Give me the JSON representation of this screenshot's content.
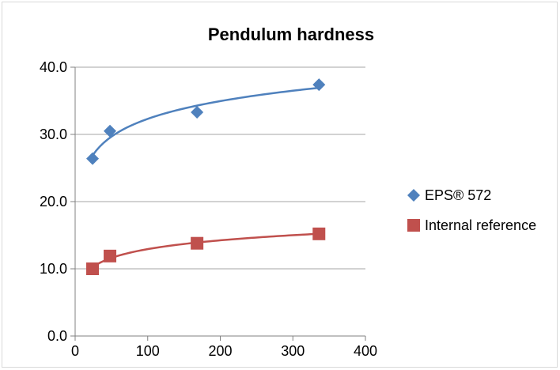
{
  "chart_data": {
    "type": "scatter",
    "title": "Pendulum hardness",
    "xlabel": "",
    "ylabel": "",
    "xlim": [
      0,
      400
    ],
    "ylim": [
      0,
      40
    ],
    "x_ticks": [
      "0",
      "100",
      "200",
      "300",
      "400"
    ],
    "y_ticks": [
      "0.0",
      "10.0",
      "20.0",
      "30.0",
      "40.0"
    ],
    "grid": "horizontal",
    "legend_position": "right",
    "series": [
      {
        "name": "EPS® 572",
        "marker": "diamond",
        "color": "#4f81bd",
        "trendline": "logarithmic",
        "x": [
          24,
          48,
          168,
          336
        ],
        "y": [
          26.4,
          30.5,
          33.3,
          37.4
        ]
      },
      {
        "name": "Internal reference",
        "marker": "square",
        "color": "#c0504d",
        "trendline": "logarithmic",
        "x": [
          24,
          48,
          168,
          336
        ],
        "y": [
          10.0,
          11.9,
          13.8,
          15.2
        ]
      }
    ]
  }
}
